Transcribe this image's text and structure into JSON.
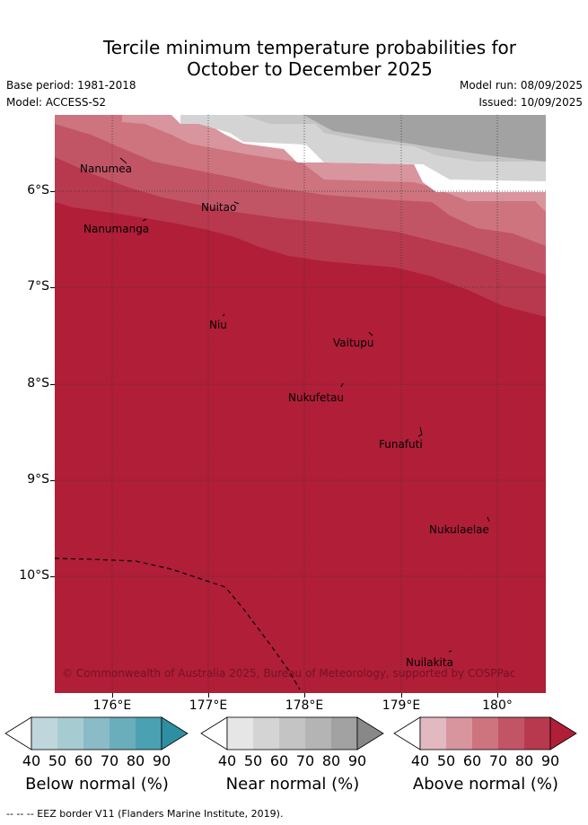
{
  "title_line1": "Tercile minimum temperature probabilities for",
  "title_line2": "October to December 2025",
  "base_period": "Base period: 1981-2018",
  "model": "Model: ACCESS-S2",
  "model_run": "Model run: 08/09/2025",
  "issued": "Issued: 10/09/2025",
  "lat_labels": [
    "6°S",
    "7°S",
    "8°S",
    "9°S",
    "10°S"
  ],
  "lon_labels": [
    "176°E",
    "177°E",
    "178°E",
    "179°E",
    "180°"
  ],
  "places": [
    "Nanumea",
    "Nuitao",
    "Nanumanga",
    "Niu",
    "Vaitupu",
    "Nukufetau",
    "Funafuti",
    "Nukulaelae",
    "Nuilakita"
  ],
  "copyright": "© Commonwealth of Australia 2025, Bureau of Meteorology, supported by COSPPac",
  "colorbars": [
    {
      "title": "Below normal (%)",
      "ticks": [
        "40",
        "50",
        "60",
        "70",
        "80",
        "90"
      ],
      "colors": [
        "#ffffff",
        "#bfd6dc",
        "#a6ccd2",
        "#8bbbc6",
        "#6aaebc",
        "#4aa1b2",
        "#2e8fa3"
      ]
    },
    {
      "title": "Near normal (%)",
      "ticks": [
        "40",
        "50",
        "60",
        "70",
        "80",
        "90"
      ],
      "colors": [
        "#ffffff",
        "#e6e6e6",
        "#d4d4d4",
        "#c4c4c4",
        "#b4b4b4",
        "#a2a2a2",
        "#888888"
      ]
    },
    {
      "title": "Above normal (%)",
      "ticks": [
        "40",
        "50",
        "60",
        "70",
        "80",
        "90"
      ],
      "colors": [
        "#ffffff",
        "#e2b9c0",
        "#d8959e",
        "#cd747f",
        "#c15566",
        "#b8384e",
        "#b01e38"
      ]
    }
  ],
  "footnote": "--  --  -- EEZ border V11 (Flanders Marine Institute, 2019)."
}
